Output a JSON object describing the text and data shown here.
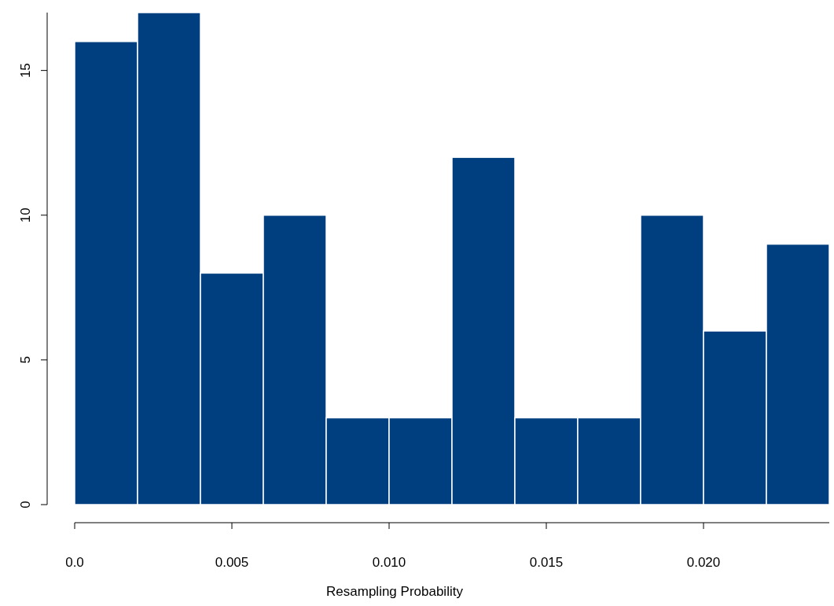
{
  "chart_data": {
    "type": "histogram",
    "xlabel": "Resampling Probability",
    "bins": [
      0,
      0.002,
      0.004,
      0.006,
      0.008,
      0.01,
      0.012,
      0.014,
      0.016,
      0.018,
      0.02,
      0.022,
      0.024
    ],
    "values": [
      16,
      17,
      8,
      10,
      3,
      3,
      12,
      3,
      3,
      10,
      6,
      9
    ],
    "color": "#003f7f",
    "xlim": [
      0,
      0.024
    ],
    "xticks": [
      {
        "value": 0,
        "label": "0.0"
      },
      0.005,
      {
        "value": 0.01,
        "label": "0.010"
      },
      0.015,
      {
        "value": 0.02,
        "label": "0.020"
      }
    ],
    "ylim": [
      0,
      17
    ],
    "yticks": [
      0,
      5,
      10,
      15
    ],
    "grid": false
  }
}
